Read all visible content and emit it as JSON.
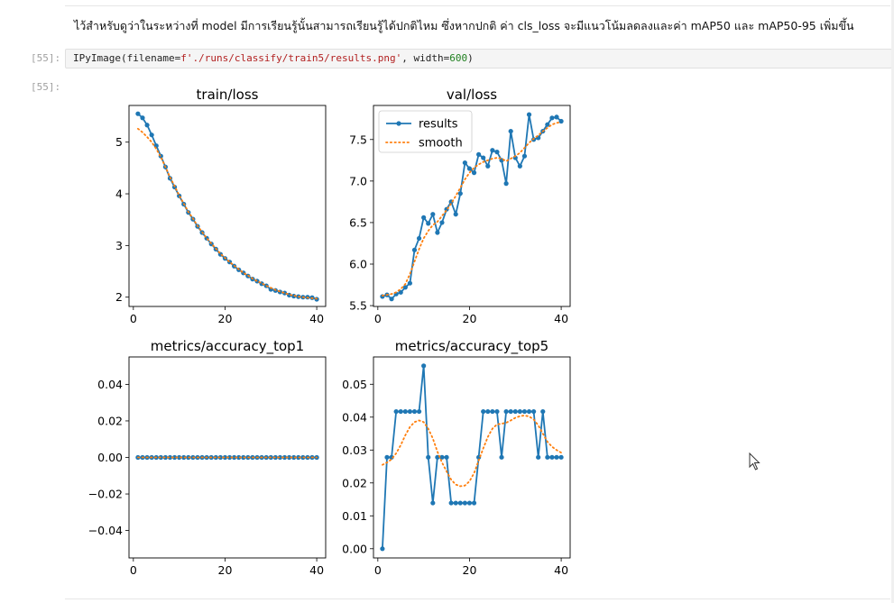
{
  "markdown": {
    "text": "ไว้สำหรับดูว่าในระหว่างที่ model มีการเรียนรู้นั้นสามารถเรียนรู้ได้ปกติไหม ซึ่งหากปกติ ค่า cls_loss จะมีแนวโน้มลดลงและค่า mAP50 และ mAP50-95 เพิ่มขึ้น"
  },
  "code_cell": {
    "prompt": "[55]:",
    "parts": {
      "fn": "IPyImage(filename=",
      "str": "f'./runs/classify/train5/results.png'",
      "mid": ", width=",
      "num": "600",
      "end": ")"
    }
  },
  "output_cell": {
    "prompt": "[55]:"
  },
  "colors": {
    "results": "#1f77b4",
    "smooth": "#ff7f0e"
  },
  "chart_data": [
    {
      "type": "line",
      "title": "train/loss",
      "xlim": [
        -0.95,
        41.95
      ],
      "ylim": [
        1.82,
        5.71
      ],
      "xticks": [
        0,
        20,
        40
      ],
      "yticks": [
        2,
        3,
        4,
        5
      ],
      "ytick_labels": [
        "2",
        "3",
        "4",
        "5"
      ],
      "x": [
        1,
        2,
        3,
        4,
        5,
        6,
        7,
        8,
        9,
        10,
        11,
        12,
        13,
        14,
        15,
        16,
        17,
        18,
        19,
        20,
        21,
        22,
        23,
        24,
        25,
        26,
        27,
        28,
        29,
        30,
        31,
        32,
        33,
        34,
        35,
        36,
        37,
        38,
        39,
        40
      ],
      "series": [
        {
          "name": "results",
          "values": [
            5.55,
            5.47,
            5.33,
            5.14,
            4.93,
            4.73,
            4.52,
            4.3,
            4.13,
            3.96,
            3.8,
            3.64,
            3.51,
            3.37,
            3.25,
            3.14,
            3.03,
            2.93,
            2.83,
            2.75,
            2.68,
            2.6,
            2.53,
            2.47,
            2.41,
            2.35,
            2.31,
            2.26,
            2.22,
            2.15,
            2.13,
            2.1,
            2.08,
            2.04,
            2.02,
            2.01,
            2.0,
            2.0,
            1.99,
            1.96
          ]
        },
        {
          "name": "smooth",
          "values": [
            5.26,
            5.19,
            5.1,
            5.0,
            4.87,
            4.71,
            4.52,
            4.32,
            4.15,
            3.97,
            3.81,
            3.65,
            3.52,
            3.38,
            3.26,
            3.14,
            3.04,
            2.94,
            2.84,
            2.76,
            2.68,
            2.61,
            2.54,
            2.47,
            2.42,
            2.36,
            2.31,
            2.27,
            2.22,
            2.18,
            2.14,
            2.11,
            2.08,
            2.05,
            2.03,
            2.01,
            2.0,
            1.99,
            1.98,
            1.97
          ]
        }
      ]
    },
    {
      "type": "line",
      "title": "val/loss",
      "xlim": [
        -0.95,
        41.95
      ],
      "ylim": [
        5.49,
        7.91
      ],
      "xticks": [
        0,
        20,
        40
      ],
      "yticks": [
        5.5,
        6.0,
        6.5,
        7.0,
        7.5
      ],
      "ytick_labels": [
        "5.5",
        "6.0",
        "6.5",
        "7.0",
        "7.5"
      ],
      "legend": {
        "position": "upper-left",
        "entries": [
          "results",
          "smooth"
        ]
      },
      "x": [
        1,
        2,
        3,
        4,
        5,
        6,
        7,
        8,
        9,
        10,
        11,
        12,
        13,
        14,
        15,
        16,
        17,
        18,
        19,
        20,
        21,
        22,
        23,
        24,
        25,
        26,
        27,
        28,
        29,
        30,
        31,
        32,
        33,
        34,
        35,
        36,
        37,
        38,
        39,
        40
      ],
      "series": [
        {
          "name": "results",
          "values": [
            5.61,
            5.63,
            5.58,
            5.64,
            5.66,
            5.72,
            5.77,
            6.17,
            6.31,
            6.56,
            6.49,
            6.6,
            6.38,
            6.5,
            6.66,
            6.75,
            6.6,
            6.85,
            7.22,
            7.15,
            7.1,
            7.32,
            7.28,
            7.18,
            7.37,
            7.35,
            7.25,
            6.97,
            7.6,
            7.28,
            7.18,
            7.3,
            7.8,
            7.5,
            7.52,
            7.6,
            7.68,
            7.76,
            7.77,
            7.72
          ]
        },
        {
          "name": "smooth",
          "values": [
            5.62,
            5.63,
            5.64,
            5.66,
            5.7,
            5.76,
            5.88,
            6.03,
            6.18,
            6.31,
            6.4,
            6.47,
            6.51,
            6.58,
            6.65,
            6.73,
            6.82,
            6.92,
            7.02,
            7.1,
            7.16,
            7.2,
            7.23,
            7.25,
            7.27,
            7.28,
            7.27,
            7.24,
            7.27,
            7.3,
            7.34,
            7.4,
            7.46,
            7.51,
            7.55,
            7.6,
            7.64,
            7.68,
            7.7,
            7.71
          ]
        }
      ]
    },
    {
      "type": "line",
      "title": "metrics/accuracy_top1",
      "xlim": [
        -0.95,
        41.95
      ],
      "ylim": [
        -0.055,
        0.055
      ],
      "xticks": [
        0,
        20,
        40
      ],
      "yticks": [
        -0.04,
        -0.02,
        0.0,
        0.02,
        0.04
      ],
      "ytick_labels": [
        "−0.04",
        "−0.02",
        "0.00",
        "0.02",
        "0.04"
      ],
      "x": [
        1,
        2,
        3,
        4,
        5,
        6,
        7,
        8,
        9,
        10,
        11,
        12,
        13,
        14,
        15,
        16,
        17,
        18,
        19,
        20,
        21,
        22,
        23,
        24,
        25,
        26,
        27,
        28,
        29,
        30,
        31,
        32,
        33,
        34,
        35,
        36,
        37,
        38,
        39,
        40
      ],
      "series": [
        {
          "name": "results",
          "values": [
            0,
            0,
            0,
            0,
            0,
            0,
            0,
            0,
            0,
            0,
            0,
            0,
            0,
            0,
            0,
            0,
            0,
            0,
            0,
            0,
            0,
            0,
            0,
            0,
            0,
            0,
            0,
            0,
            0,
            0,
            0,
            0,
            0,
            0,
            0,
            0,
            0,
            0,
            0,
            0
          ]
        },
        {
          "name": "smooth",
          "values": [
            0,
            0,
            0,
            0,
            0,
            0,
            0,
            0,
            0,
            0,
            0,
            0,
            0,
            0,
            0,
            0,
            0,
            0,
            0,
            0,
            0,
            0,
            0,
            0,
            0,
            0,
            0,
            0,
            0,
            0,
            0,
            0,
            0,
            0,
            0,
            0,
            0,
            0,
            0,
            0
          ]
        }
      ]
    },
    {
      "type": "line",
      "title": "metrics/accuracy_top5",
      "xlim": [
        -0.95,
        41.95
      ],
      "ylim": [
        -0.0028,
        0.0583
      ],
      "xticks": [
        0,
        20,
        40
      ],
      "yticks": [
        0.0,
        0.01,
        0.02,
        0.03,
        0.04,
        0.05
      ],
      "ytick_labels": [
        "0.00",
        "0.01",
        "0.02",
        "0.03",
        "0.04",
        "0.05"
      ],
      "x": [
        1,
        2,
        3,
        4,
        5,
        6,
        7,
        8,
        9,
        10,
        11,
        12,
        13,
        14,
        15,
        16,
        17,
        18,
        19,
        20,
        21,
        22,
        23,
        24,
        25,
        26,
        27,
        28,
        29,
        30,
        31,
        32,
        33,
        34,
        35,
        36,
        37,
        38,
        39,
        40
      ],
      "series": [
        {
          "name": "results",
          "values": [
            0.0,
            0.0278,
            0.0278,
            0.0417,
            0.0417,
            0.0417,
            0.0417,
            0.0417,
            0.0417,
            0.0556,
            0.0278,
            0.0139,
            0.0278,
            0.0278,
            0.0278,
            0.0139,
            0.0139,
            0.0139,
            0.0139,
            0.0139,
            0.0139,
            0.0278,
            0.0417,
            0.0417,
            0.0417,
            0.0417,
            0.0278,
            0.0417,
            0.0417,
            0.0417,
            0.0417,
            0.0417,
            0.0417,
            0.0417,
            0.0278,
            0.0417,
            0.0278,
            0.0278,
            0.0278,
            0.0278
          ]
        },
        {
          "name": "smooth",
          "values": [
            0.0255,
            0.0262,
            0.0272,
            0.029,
            0.0315,
            0.0345,
            0.037,
            0.0385,
            0.039,
            0.0385,
            0.0365,
            0.0335,
            0.0295,
            0.0262,
            0.0235,
            0.021,
            0.0195,
            0.019,
            0.0192,
            0.0205,
            0.023,
            0.0268,
            0.0305,
            0.034,
            0.0365,
            0.0378,
            0.038,
            0.0383,
            0.039,
            0.0398,
            0.0403,
            0.0405,
            0.0402,
            0.0393,
            0.0375,
            0.035,
            0.0325,
            0.031,
            0.03,
            0.0292
          ]
        }
      ]
    }
  ]
}
